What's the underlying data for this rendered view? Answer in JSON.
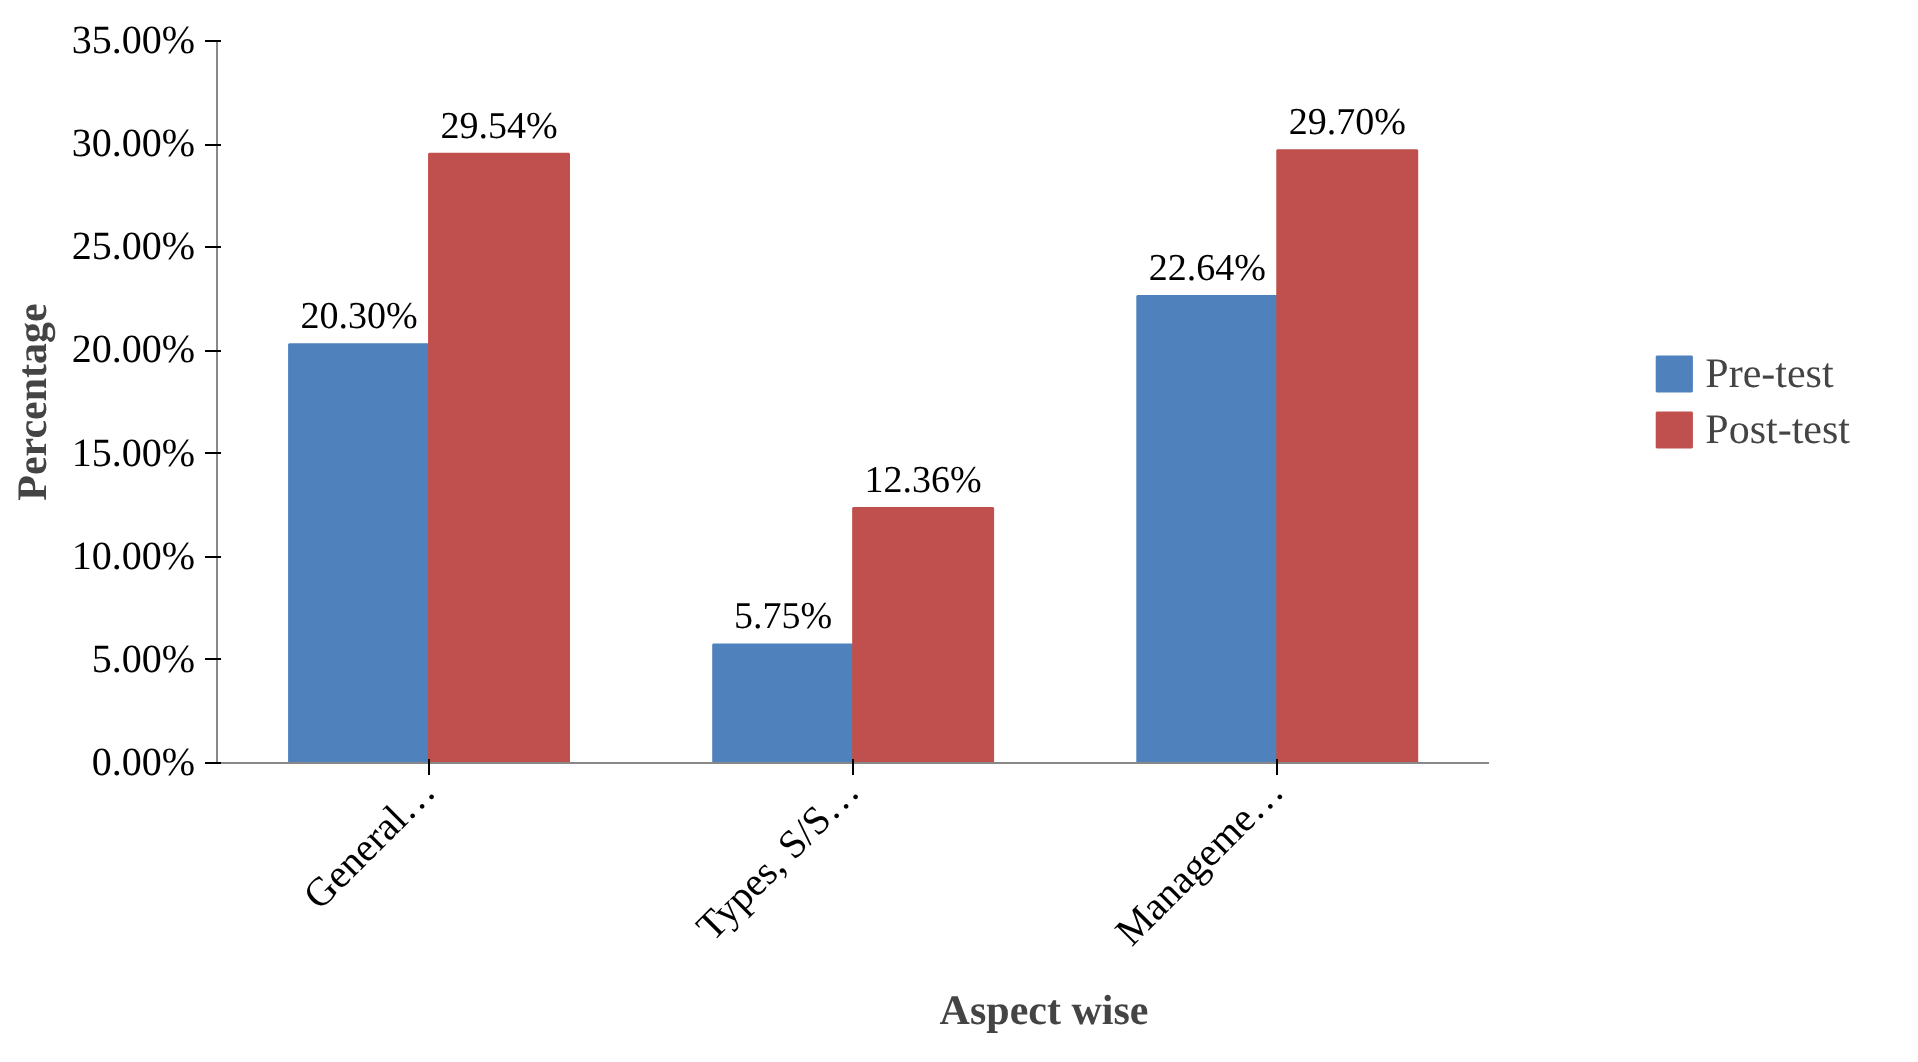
{
  "chart_data": {
    "type": "bar",
    "xlabel": "Aspect wise",
    "ylabel": "Percentage",
    "categories": [
      "General…",
      "Types, S/S…",
      "Manageme…"
    ],
    "series": [
      {
        "name": "Pre-test",
        "color": "#4f81bd",
        "values": [
          20.3,
          5.75,
          22.64
        ],
        "value_labels": [
          "20.30%",
          "5.75%",
          "22.64%"
        ]
      },
      {
        "name": "Post-test",
        "color": "#c0504d",
        "values": [
          29.54,
          12.36,
          29.7
        ],
        "value_labels": [
          "29.54%",
          "12.36%",
          "29.70%"
        ]
      }
    ],
    "ylim": [
      0,
      35
    ],
    "yticks": [
      {
        "value": 0,
        "label": "0.00%"
      },
      {
        "value": 5,
        "label": "5.00%"
      },
      {
        "value": 10,
        "label": "10.00%"
      },
      {
        "value": 15,
        "label": "15.00%"
      },
      {
        "value": 20,
        "label": "20.00%"
      },
      {
        "value": 25,
        "label": "25.00%"
      },
      {
        "value": 30,
        "label": "30.00%"
      },
      {
        "value": 35,
        "label": "35.00%"
      }
    ],
    "grid": false,
    "legend": "right"
  }
}
